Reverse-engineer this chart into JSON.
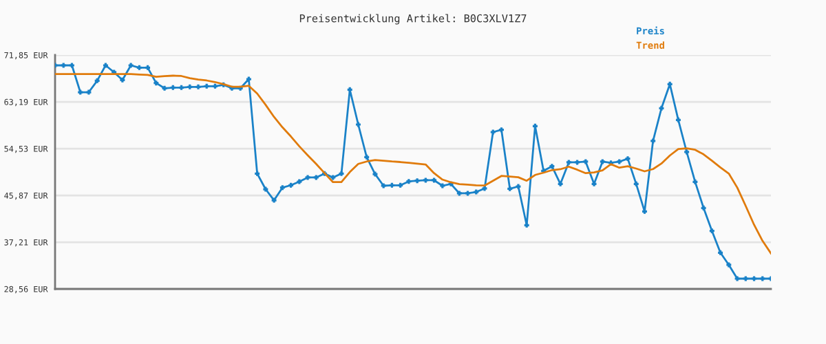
{
  "chart_data": {
    "type": "line",
    "title": "Preisentwicklung Artikel: B0C3XLV1Z7",
    "categories": [
      null,
      null,
      null,
      null,
      null,
      null,
      null,
      null,
      null,
      null,
      null,
      null,
      null,
      null,
      null,
      null,
      null,
      null,
      null,
      null,
      null,
      null,
      null,
      null,
      null,
      null,
      null,
      null,
      null,
      null,
      null,
      null,
      null,
      null,
      null,
      null,
      null,
      null,
      null,
      null,
      null,
      null,
      null,
      null,
      null,
      null,
      null,
      null,
      null,
      null,
      null,
      null,
      null,
      null,
      null,
      null,
      null,
      null,
      null,
      null,
      null,
      null,
      null,
      null,
      null,
      null,
      null,
      null,
      null,
      null,
      null,
      null,
      null,
      null,
      null,
      null,
      null,
      null,
      null,
      null,
      null,
      null,
      null,
      null,
      null,
      null
    ],
    "series": [
      {
        "name": "Preis",
        "color": "#1a82c8",
        "marker": "cross",
        "values": [
          69.94,
          69.94,
          69.94,
          64.97,
          64.97,
          67.1,
          69.94,
          68.67,
          67.23,
          69.94,
          69.52,
          69.52,
          66.67,
          65.7,
          65.83,
          65.83,
          65.95,
          65.95,
          66.08,
          66.08,
          66.34,
          65.7,
          65.7,
          67.39,
          49.91,
          47.02,
          44.98,
          47.32,
          47.75,
          48.42,
          49.19,
          49.19,
          49.91,
          49.19,
          49.91,
          65.44,
          58.99,
          52.97,
          49.82,
          47.66,
          47.75,
          47.75,
          48.46,
          48.59,
          48.68,
          48.68,
          47.66,
          48.0,
          46.26,
          46.26,
          46.51,
          47.15,
          57.59,
          58.01,
          47.11,
          47.53,
          40.36,
          58.7,
          50.42,
          51.26,
          48.0,
          51.99,
          51.99,
          52.12,
          48.0,
          52.12,
          51.9,
          52.12,
          52.67,
          48.0,
          42.9,
          55.94,
          62.01,
          66.46,
          59.84,
          53.9,
          48.38,
          43.55,
          39.3,
          35.27,
          33.02,
          30.47,
          30.47,
          30.47,
          30.47,
          30.47
        ]
      },
      {
        "name": "Trend",
        "color": "#e07b0c",
        "marker": "none",
        "values": [
          68.32,
          68.32,
          68.32,
          68.32,
          68.32,
          68.32,
          68.32,
          68.32,
          68.32,
          68.32,
          68.25,
          68.16,
          67.82,
          67.95,
          68.03,
          67.97,
          67.56,
          67.3,
          67.14,
          66.85,
          66.46,
          65.99,
          65.99,
          66.16,
          64.72,
          62.64,
          60.4,
          58.48,
          56.79,
          54.96,
          53.3,
          51.7,
          49.99,
          48.33,
          48.33,
          50.2,
          51.7,
          52.15,
          52.41,
          52.3,
          52.15,
          52.05,
          51.9,
          51.75,
          51.6,
          49.99,
          48.8,
          48.3,
          47.95,
          47.87,
          47.75,
          47.7,
          48.59,
          49.48,
          49.35,
          49.23,
          48.59,
          49.66,
          50.08,
          50.55,
          50.72,
          51.19,
          50.63,
          49.99,
          50.12,
          50.5,
          51.65,
          51.01,
          51.26,
          50.84,
          50.33,
          50.75,
          51.77,
          53.26,
          54.45,
          54.58,
          54.32,
          53.48,
          52.28,
          51.06,
          49.91,
          47.32,
          43.93,
          40.44,
          37.47,
          35.14
        ]
      }
    ],
    "ylim": [
      28.56,
      71.85
    ],
    "yticks": [
      {
        "value": 28.56,
        "label": "28,56 EUR"
      },
      {
        "value": 37.21,
        "label": "37,21 EUR"
      },
      {
        "value": 45.87,
        "label": "45,87 EUR"
      },
      {
        "value": 54.53,
        "label": "54,53 EUR"
      },
      {
        "value": 63.19,
        "label": "63,19 EUR"
      },
      {
        "value": 71.85,
        "label": "71,85 EUR"
      }
    ],
    "tick_labels": "y",
    "grid": "y",
    "legend": "top right",
    "line_style": "solid"
  }
}
